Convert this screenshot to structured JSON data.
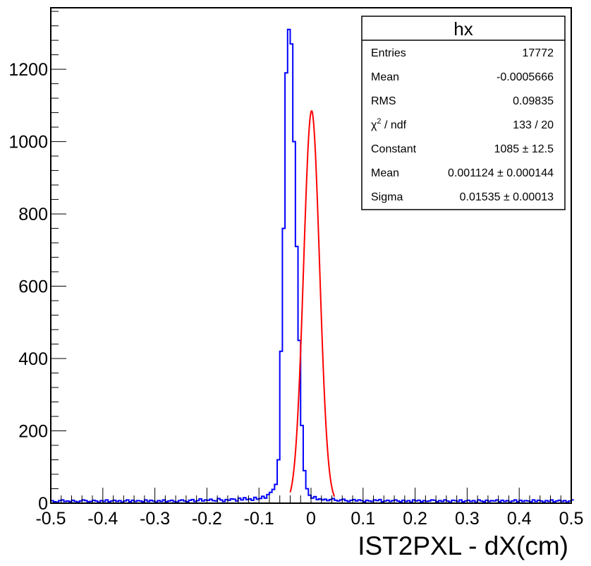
{
  "chart_data": {
    "type": "histogram",
    "title": "",
    "xlabel": "IST2PXL - dX(cm)",
    "ylabel": "",
    "xlim": [
      -0.5,
      0.5
    ],
    "ylim": [
      0,
      1370
    ],
    "x_ticks": [
      "-0.5",
      "-0.4",
      "-0.3",
      "-0.2",
      "-0.1",
      "0",
      "0.1",
      "0.2",
      "0.3",
      "0.4",
      "0.5"
    ],
    "y_ticks": [
      "0",
      "200",
      "400",
      "600",
      "800",
      "1000",
      "1200"
    ],
    "bin_width": 0.005,
    "series": [
      {
        "kind": "histogram",
        "color": "#0000ff",
        "values": [
          7,
          4,
          3,
          7,
          9,
          5,
          6,
          4,
          8,
          5,
          3,
          6,
          9,
          7,
          4,
          5,
          8,
          6,
          3,
          7,
          5,
          9,
          4,
          6,
          8,
          5,
          7,
          3,
          6,
          9,
          4,
          8,
          5,
          7,
          6,
          4,
          9,
          5,
          8,
          6,
          3,
          7,
          5,
          9,
          4,
          6,
          8,
          5,
          3,
          7,
          9,
          6,
          4,
          8,
          10,
          5,
          7,
          12,
          6,
          9,
          8,
          11,
          7,
          6,
          13,
          9,
          5,
          10,
          8,
          12,
          11,
          6,
          14,
          9,
          15,
          10,
          12,
          8,
          16,
          11,
          13,
          19,
          14,
          24,
          30,
          38,
          52,
          120,
          420,
          760,
          1190,
          1310,
          1270,
          1000,
          710,
          450,
          215,
          90,
          40,
          22,
          14,
          18,
          10,
          12,
          9,
          11,
          7,
          10,
          13,
          8,
          6,
          9,
          11,
          7,
          5,
          8,
          10,
          6,
          9,
          7,
          4,
          8,
          6,
          5,
          9,
          7,
          10,
          4,
          6,
          8,
          5,
          7,
          9,
          6,
          4,
          8,
          5,
          7,
          3,
          9,
          6,
          8,
          4,
          7,
          5,
          6,
          9,
          8,
          4,
          7,
          5,
          9,
          6,
          3,
          8,
          7,
          5,
          9,
          4,
          6,
          8,
          5,
          7,
          3,
          9,
          6,
          4,
          8,
          5,
          7,
          6,
          9,
          4,
          8,
          5,
          7,
          3,
          6,
          9,
          4,
          8,
          5,
          7,
          6,
          4,
          9,
          5,
          8,
          6,
          3,
          7,
          5,
          9,
          4,
          6,
          8,
          5,
          7,
          3,
          6,
          9
        ]
      },
      {
        "kind": "gaussian-fit",
        "color": "#ff0000",
        "constant": 1085,
        "mean": 0.001124,
        "sigma": 0.01535,
        "x_range": [
          -0.04,
          0.045
        ]
      }
    ],
    "stats_box": {
      "title": "hx",
      "placement": "top-right",
      "rows": [
        {
          "label": "Entries",
          "value": "17772"
        },
        {
          "label": "Mean",
          "value": "-0.0005666"
        },
        {
          "label": "RMS",
          "value": "0.09835"
        },
        {
          "label_base": "χ",
          "label_sup": "2",
          "label_rest": " / ndf",
          "value": "133 / 20"
        },
        {
          "label": "Constant",
          "value": "1085 ± 12.5"
        },
        {
          "label": "Mean",
          "value": "0.001124 ± 0.000144"
        },
        {
          "label": "Sigma",
          "value": "0.01535 ± 0.00013"
        }
      ]
    }
  }
}
